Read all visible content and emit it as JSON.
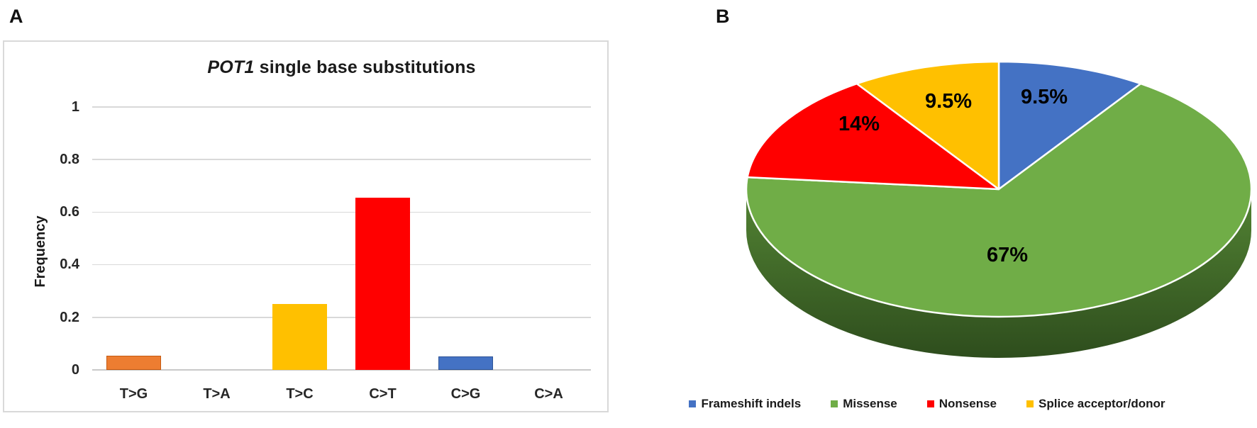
{
  "figure": {
    "panel_a_label": "A",
    "panel_b_label": "B"
  },
  "chart_data": [
    {
      "type": "bar",
      "title": "POT1 single base substitutions",
      "title_parts": {
        "italic": "POT1",
        "regular": " single base substitutions"
      },
      "ylabel": "Frequency",
      "xlabel": "",
      "categories": [
        "T>G",
        "T>A",
        "T>C",
        "C>T",
        "C>G",
        "C>A"
      ],
      "values": [
        0.055,
        0,
        0.25,
        0.655,
        0.05,
        0
      ],
      "bar_colors": [
        "#ED7D31",
        null,
        "#FFC000",
        "#FF0000",
        "#4472C4",
        null
      ],
      "bar_border_colors": [
        "#C55A11",
        null,
        null,
        null,
        "#2F5597",
        null
      ],
      "yticks": [
        "1",
        "0.8",
        "0.6",
        "0.4",
        "0.2",
        "0"
      ],
      "ytick_values": [
        1,
        0.8,
        0.6,
        0.4,
        0.2,
        0
      ],
      "ylim": [
        0,
        1.1
      ],
      "grid": true,
      "gridline_color": "#D9D9D9",
      "axis_line_color": "#C9C9C9",
      "legend_position": "none"
    },
    {
      "type": "pie",
      "style": "3d",
      "start_angle_deg": 0,
      "direction": "clockwise",
      "slices": [
        {
          "name": "Frameshift indels",
          "value": 9.5,
          "label": "9.5%",
          "color": "#4472C4"
        },
        {
          "name": "Missense",
          "value": 67,
          "label": "67%",
          "color": "#70AD47"
        },
        {
          "name": "Nonsense",
          "value": 14,
          "label": "14%",
          "color": "#FF0000"
        },
        {
          "name": "Splice acceptor/donor",
          "value": 9.5,
          "label": "9.5%",
          "color": "#FFC000"
        }
      ],
      "side_gradient": [
        "#538434",
        "#2E4D1D"
      ],
      "slice_outline_color": "#FFFFFF",
      "legend_position": "bottom"
    }
  ]
}
